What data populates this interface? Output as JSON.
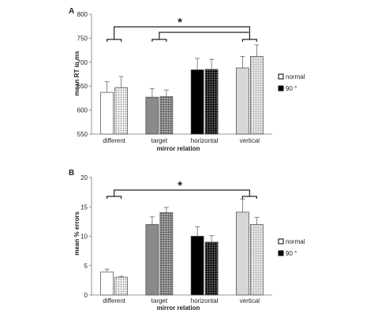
{
  "chart_data": [
    {
      "type": "bar",
      "panel": "A",
      "categories": [
        "different",
        "target",
        "horizontal",
        "vertical"
      ],
      "series": [
        {
          "name": "normal",
          "values": [
            637,
            627,
            684,
            688
          ],
          "errors": [
            22,
            18,
            24,
            24
          ]
        },
        {
          "name": "90 °",
          "values": [
            647,
            628,
            685,
            712
          ],
          "errors": [
            23,
            14,
            21,
            24
          ]
        }
      ],
      "xlabel": "mirror relation",
      "ylabel": "mean RT in ms",
      "ylim": [
        550,
        800
      ],
      "yticks": [
        550,
        600,
        650,
        700,
        750,
        800
      ],
      "yticklabels": [
        "550",
        "600",
        "650",
        "700",
        "750",
        "800"
      ],
      "annotation": "*",
      "legend_position": "right"
    },
    {
      "type": "bar",
      "panel": "B",
      "categories": [
        "different",
        "target",
        "horizontal",
        "vertical"
      ],
      "series": [
        {
          "name": "normal",
          "values": [
            3.9,
            12.0,
            10.0,
            14.1
          ],
          "errors": [
            0.5,
            1.3,
            1.6,
            2.2
          ]
        },
        {
          "name": "90 °",
          "values": [
            3.0,
            14.0,
            9.0,
            12.0
          ],
          "errors": [
            0.2,
            0.9,
            1.1,
            1.2
          ]
        }
      ],
      "xlabel": "mirror relation",
      "ylabel": "mean % errors",
      "ylim": [
        0,
        20
      ],
      "yticks": [
        0,
        5,
        10,
        15,
        20
      ],
      "yticklabels": [
        "0",
        "5",
        "10",
        "15",
        "20"
      ],
      "annotation": "*",
      "legend_position": "right"
    }
  ],
  "colors": {
    "different": [
      "#ffffff",
      "#ffffff"
    ],
    "target": [
      "#8a8a8a",
      "#9a9a9a"
    ],
    "horizontal": [
      "#000000",
      "#3a3a3a"
    ],
    "vertical": [
      "#d6d6d6",
      "#dcdcdc"
    ]
  },
  "legend_swatches": [
    "#ffffff",
    "#000000"
  ]
}
